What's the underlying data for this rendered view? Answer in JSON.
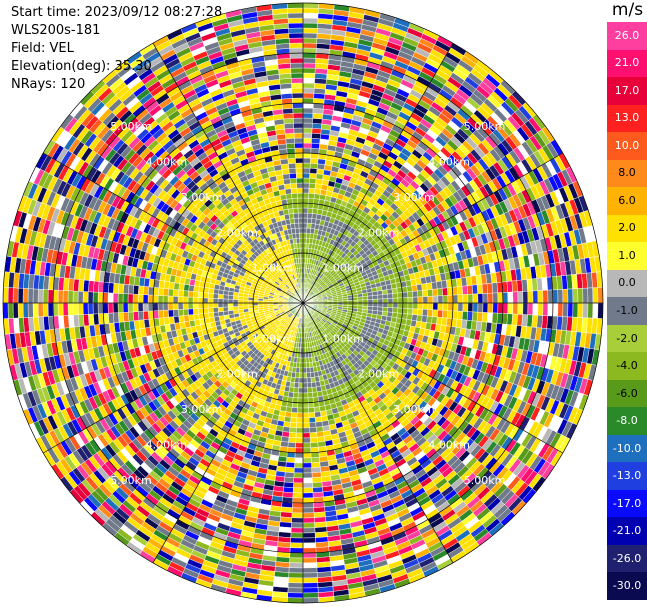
{
  "info": {
    "start_time": "Start time: 2023/09/12 08:27:28",
    "instrument": "WLS200s-181",
    "field": "Field: VEL",
    "elevation": "Elevation(deg): 35.30",
    "nrays": "NRays: 120"
  },
  "colorbar": {
    "unit": "m/s",
    "ticks": [
      "26.0",
      "21.0",
      "17.0",
      "13.0",
      "10.0",
      "8.0",
      "6.0",
      "2.0",
      "1.0",
      "0.0",
      "-1.0",
      "-2.0",
      "-4.0",
      "-6.0",
      "-8.0",
      "-10.0",
      "-13.0",
      "-17.0",
      "-21.0",
      "-26.0",
      "-30.0"
    ],
    "colors": [
      "#ff3fa0",
      "#ff0f6f",
      "#e8003a",
      "#ff2020",
      "#ff5a1e",
      "#ff8a1c",
      "#ffb300",
      "#ffe100",
      "#ffff30",
      "#b8b8b8",
      "#707a8a",
      "#a8cf3a",
      "#8cb820",
      "#5a9a1a",
      "#2a8a2a",
      "#1f6fbf",
      "#1f3fe0",
      "#0a0aff",
      "#0000b0",
      "#202070",
      "#0a0a50"
    ]
  },
  "ppi": {
    "range_labels": [
      "1.00km",
      "2.00km",
      "3.00km",
      "4.00km",
      "5.00km"
    ],
    "n_rings": 6,
    "n_rays": 120,
    "angles_deg": [
      0,
      30,
      60,
      90,
      120,
      150,
      180,
      210,
      240,
      270,
      300,
      330
    ]
  }
}
